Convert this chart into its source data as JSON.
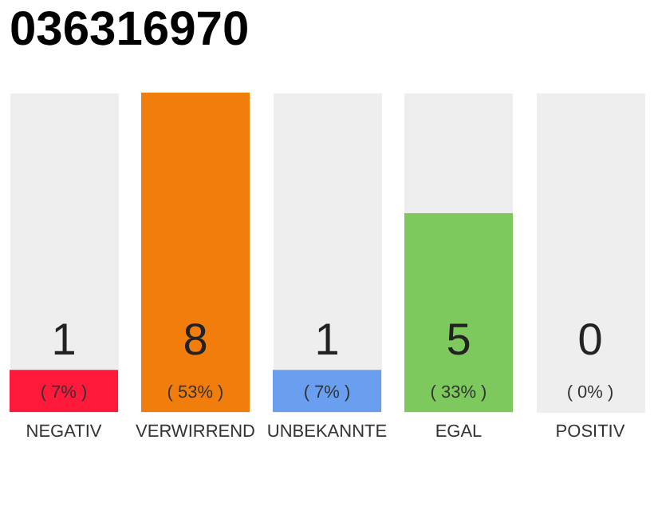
{
  "chart_data": {
    "type": "bar",
    "title": "036316970",
    "categories": [
      "NEGATIV",
      "VERWIRREND",
      "UNBEKANNTE",
      "EGAL",
      "POSITIV"
    ],
    "values": [
      7,
      53,
      7,
      33,
      0
    ],
    "colors": [
      "#ff1a3c",
      "#f07d0c",
      "#6a9ff0",
      "#7dc95e",
      "#2ea84a"
    ],
    "value_labels": [
      "( 7% )",
      "( 53% )",
      "( 7% )",
      "( 33% )",
      "( 0% )"
    ],
    "annotations": [
      "1",
      "8",
      "1",
      "5",
      "0"
    ],
    "tick_labels": "x",
    "grid": "x"
  }
}
